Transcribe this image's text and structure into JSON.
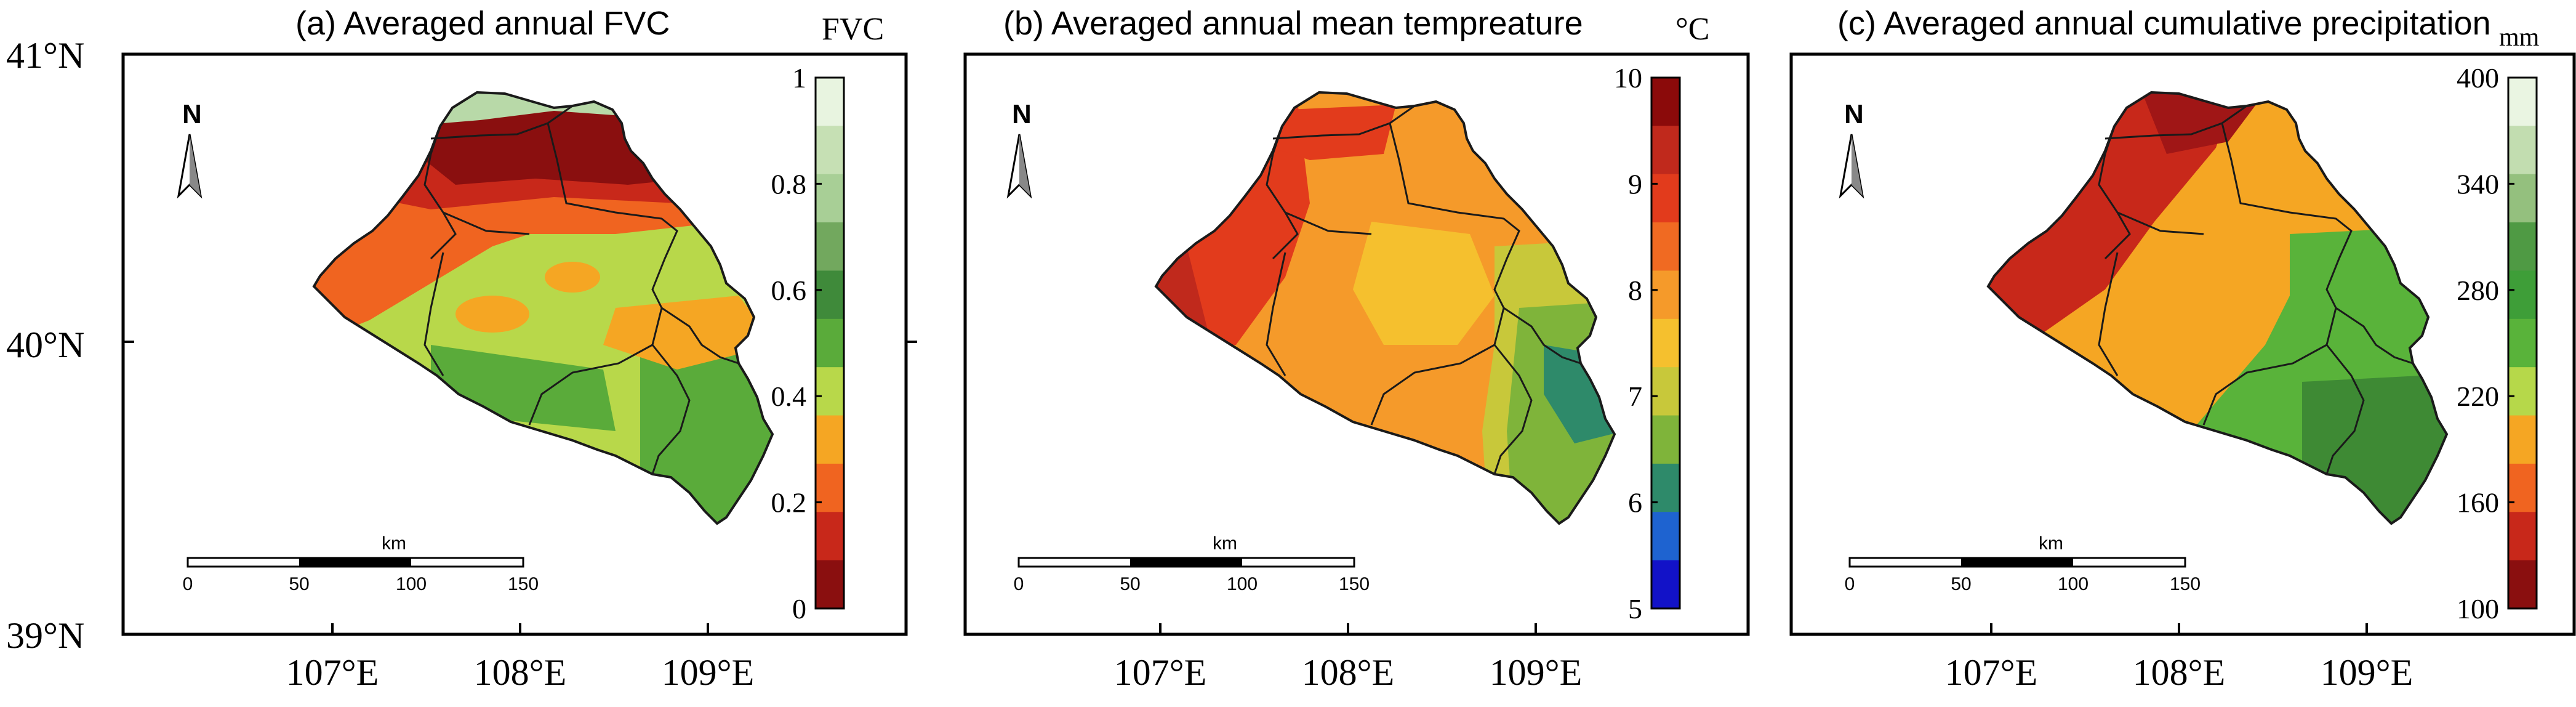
{
  "figure": {
    "lat_labels": [
      "41°N",
      "40°N",
      "39°N"
    ],
    "lon_labels": [
      "107°E",
      "108°E",
      "109°E"
    ],
    "north_label": "N",
    "scale_bar": {
      "unit": "km",
      "ticks": [
        "0",
        "50",
        "100",
        "150"
      ]
    },
    "colors": {
      "frame": "#000000",
      "boundary": "#1a1a1a",
      "background": "#ffffff"
    }
  },
  "panels": [
    {
      "id": "fvc",
      "title": "(a) Averaged annual FVC",
      "unit": "FVC",
      "legend_labels": [
        "1",
        "0.8",
        "0.6",
        "0.4",
        "0.2",
        "0"
      ],
      "legend_colors": [
        "#e8f4e0",
        "#c6e0b4",
        "#a8cf96",
        "#72a85e",
        "#3f8a3a",
        "#5aab3a",
        "#b8d84a",
        "#f5a623",
        "#f06420",
        "#c8281a",
        "#8a0f0f"
      ]
    },
    {
      "id": "temperature",
      "title": "(b) Averaged annual mean tempreature",
      "unit": "°C",
      "legend_labels": [
        "10",
        "9",
        "8",
        "7",
        "6",
        "5"
      ],
      "legend_colors": [
        "#8b0a0a",
        "#c0291c",
        "#e23b1c",
        "#f06a22",
        "#f59a2a",
        "#f5c02e",
        "#c8c83a",
        "#7fb43a",
        "#2e8a6a",
        "#1e63d0",
        "#1212c8"
      ]
    },
    {
      "id": "precipitation",
      "title": "(c) Averaged annual cumulative precipitation",
      "unit": "mm",
      "legend_labels": [
        "400",
        "340",
        "280",
        "220",
        "160",
        "100"
      ],
      "legend_colors": [
        "#eaf5e2",
        "#c2ddb0",
        "#94c07e",
        "#4f9a44",
        "#3e9e38",
        "#59b33a",
        "#b6d84a",
        "#f5a623",
        "#f06420",
        "#c8281a",
        "#8a0f0f"
      ]
    }
  ]
}
